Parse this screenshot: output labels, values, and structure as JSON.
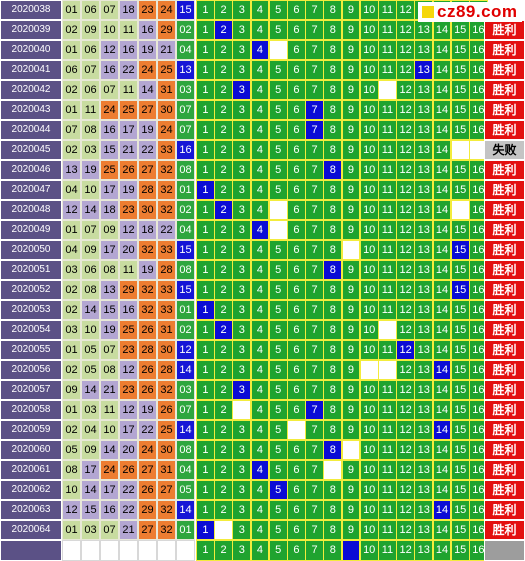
{
  "logo": {
    "text": "cz89.com",
    "color": "#e00000"
  },
  "colors": {
    "grid_green": "#1fa32f",
    "hit_blue": "#0b0bd5",
    "win_red": "#e3100f",
    "period_bg": "#5b5186"
  },
  "labels": {
    "win": "胜利",
    "lose": "失败"
  },
  "grid_numbers": [
    1,
    2,
    3,
    4,
    5,
    6,
    7,
    8,
    9,
    10,
    11,
    12,
    13,
    14,
    15,
    16
  ],
  "rows": [
    {
      "period": "2020038",
      "balls": [
        "01",
        "06",
        "07",
        "18",
        "23",
        "24"
      ],
      "blue": "15",
      "hit": null,
      "blanks": [],
      "result": "",
      "logo_row": true
    },
    {
      "period": "2020039",
      "balls": [
        "02",
        "09",
        "10",
        "11",
        "16",
        "29"
      ],
      "blue": "02",
      "hit": 2,
      "blanks": [],
      "result": "win"
    },
    {
      "period": "2020040",
      "balls": [
        "01",
        "06",
        "12",
        "16",
        "19",
        "21"
      ],
      "blue": "04",
      "hit": 4,
      "blanks": [
        5
      ],
      "result": "win"
    },
    {
      "period": "2020041",
      "balls": [
        "06",
        "07",
        "16",
        "22",
        "24",
        "25"
      ],
      "blue": "13",
      "hit": 13,
      "blanks": [],
      "result": "win"
    },
    {
      "period": "2020042",
      "balls": [
        "02",
        "06",
        "07",
        "11",
        "14",
        "31"
      ],
      "blue": "03",
      "hit": 3,
      "blanks": [
        11
      ],
      "result": "win"
    },
    {
      "period": "2020043",
      "balls": [
        "01",
        "11",
        "24",
        "25",
        "27",
        "30"
      ],
      "blue": "07",
      "hit": 7,
      "blanks": [],
      "result": "win"
    },
    {
      "period": "2020044",
      "balls": [
        "07",
        "08",
        "16",
        "17",
        "19",
        "24"
      ],
      "blue": "07",
      "hit": 7,
      "blanks": [],
      "result": "win"
    },
    {
      "period": "2020045",
      "balls": [
        "02",
        "03",
        "15",
        "21",
        "22",
        "33"
      ],
      "blue": "16",
      "hit": null,
      "blanks": [
        15,
        16
      ],
      "result": "lose"
    },
    {
      "period": "2020046",
      "balls": [
        "13",
        "19",
        "25",
        "26",
        "27",
        "32"
      ],
      "blue": "08",
      "hit": 8,
      "blanks": [],
      "result": "win"
    },
    {
      "period": "2020047",
      "balls": [
        "04",
        "10",
        "17",
        "19",
        "28",
        "32"
      ],
      "blue": "01",
      "hit": 1,
      "blanks": [],
      "result": "win"
    },
    {
      "period": "2020048",
      "balls": [
        "12",
        "14",
        "18",
        "23",
        "30",
        "32"
      ],
      "blue": "02",
      "hit": 2,
      "blanks": [
        5,
        15
      ],
      "result": "win"
    },
    {
      "period": "2020049",
      "balls": [
        "01",
        "07",
        "09",
        "12",
        "18",
        "22"
      ],
      "blue": "04",
      "hit": 4,
      "blanks": [
        5
      ],
      "result": "win"
    },
    {
      "period": "2020050",
      "balls": [
        "04",
        "09",
        "17",
        "20",
        "32",
        "33"
      ],
      "blue": "15",
      "hit": 15,
      "blanks": [
        9
      ],
      "result": "win"
    },
    {
      "period": "2020051",
      "balls": [
        "03",
        "06",
        "08",
        "11",
        "19",
        "28"
      ],
      "blue": "08",
      "hit": 8,
      "blanks": [],
      "result": "win"
    },
    {
      "period": "2020052",
      "balls": [
        "02",
        "08",
        "13",
        "29",
        "32",
        "33"
      ],
      "blue": "15",
      "hit": 15,
      "blanks": [],
      "result": "win"
    },
    {
      "period": "2020053",
      "balls": [
        "02",
        "14",
        "15",
        "16",
        "32",
        "33"
      ],
      "blue": "01",
      "hit": 1,
      "blanks": [],
      "result": "win"
    },
    {
      "period": "2020054",
      "balls": [
        "03",
        "10",
        "19",
        "25",
        "26",
        "31"
      ],
      "blue": "02",
      "hit": 2,
      "blanks": [
        11
      ],
      "result": "win"
    },
    {
      "period": "2020055",
      "balls": [
        "01",
        "05",
        "07",
        "23",
        "28",
        "30"
      ],
      "blue": "12",
      "hit": 12,
      "blanks": [],
      "result": "win"
    },
    {
      "period": "2020056",
      "balls": [
        "02",
        "05",
        "08",
        "12",
        "26",
        "28"
      ],
      "blue": "14",
      "hit": 14,
      "blanks": [
        10,
        11
      ],
      "result": "win"
    },
    {
      "period": "2020057",
      "balls": [
        "09",
        "14",
        "21",
        "23",
        "26",
        "32"
      ],
      "blue": "03",
      "hit": 3,
      "blanks": [],
      "result": "win"
    },
    {
      "period": "2020058",
      "balls": [
        "01",
        "03",
        "11",
        "12",
        "19",
        "26"
      ],
      "blue": "07",
      "hit": 7,
      "blanks": [
        3
      ],
      "result": "win"
    },
    {
      "period": "2020059",
      "balls": [
        "02",
        "04",
        "10",
        "17",
        "22",
        "25"
      ],
      "blue": "14",
      "hit": 14,
      "blanks": [
        6
      ],
      "result": "win"
    },
    {
      "period": "2020060",
      "balls": [
        "05",
        "09",
        "14",
        "20",
        "24",
        "30"
      ],
      "blue": "08",
      "hit": 8,
      "blanks": [
        9
      ],
      "result": "win"
    },
    {
      "period": "2020061",
      "balls": [
        "08",
        "17",
        "24",
        "26",
        "27",
        "31"
      ],
      "blue": "04",
      "hit": 4,
      "blanks": [
        8
      ],
      "result": "win"
    },
    {
      "period": "2020062",
      "balls": [
        "10",
        "14",
        "17",
        "22",
        "26",
        "27"
      ],
      "blue": "05",
      "hit": 5,
      "blanks": [],
      "result": "win"
    },
    {
      "period": "2020063",
      "balls": [
        "12",
        "15",
        "16",
        "22",
        "29",
        "32"
      ],
      "blue": "14",
      "hit": 14,
      "blanks": [],
      "result": "win"
    },
    {
      "period": "2020064",
      "balls": [
        "01",
        "03",
        "07",
        "21",
        "27",
        "32"
      ],
      "blue": "01",
      "hit": 1,
      "blanks": [
        2
      ],
      "result": "win"
    }
  ],
  "footer": {
    "hit": 9,
    "blanks": []
  }
}
